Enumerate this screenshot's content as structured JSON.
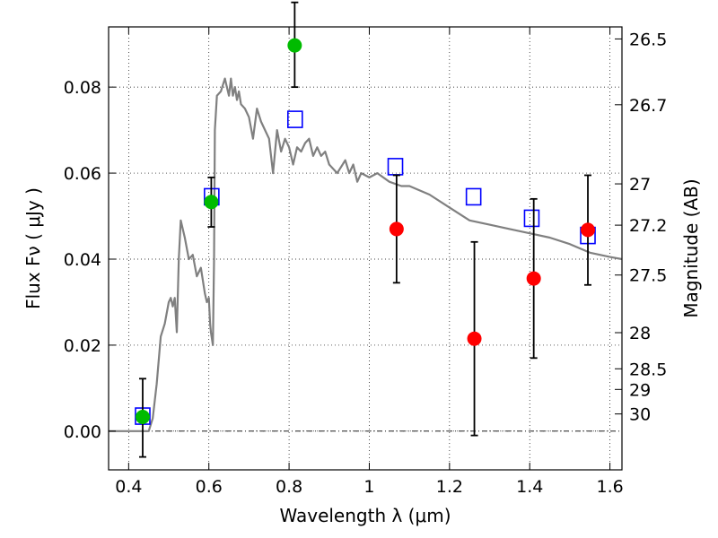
{
  "chart_data": {
    "type": "scatter",
    "xlabel": "Wavelength  λ (μm)",
    "ylabel": "Flux  Fν  ( μJy )",
    "y2label": "Magnitude (AB)",
    "xlim": [
      0.35,
      1.63
    ],
    "ylim": [
      -0.009,
      0.094
    ],
    "grid": true,
    "x_ticks": [
      "0.4",
      "0.6",
      "0.8",
      "1",
      "1.2",
      "1.4",
      "1.6"
    ],
    "x_tick_values": [
      0.4,
      0.6,
      0.8,
      1.0,
      1.2,
      1.4,
      1.6
    ],
    "y_ticks": [
      "0.00",
      "0.02",
      "0.04",
      "0.06",
      "0.08"
    ],
    "y_tick_values": [
      0.0,
      0.02,
      0.04,
      0.06,
      0.08
    ],
    "y2_ticks": [
      "26.5",
      "26.7",
      "27",
      "27.2",
      "27.5",
      "28",
      "28.5",
      "29",
      "30"
    ],
    "y2_tick_flux": [
      0.0912,
      0.0759,
      0.0575,
      0.0479,
      0.0363,
      0.0229,
      0.0145,
      0.0097,
      0.004
    ],
    "colors": {
      "model": "#808080",
      "model_photometry": "#0000ff",
      "green_points": "#00bb00",
      "red_points": "#ff0000",
      "errorbar": "#000000"
    },
    "model_curve": {
      "x": [
        0.35,
        0.45,
        0.46,
        0.47,
        0.48,
        0.49,
        0.5,
        0.505,
        0.51,
        0.515,
        0.52,
        0.525,
        0.53,
        0.54,
        0.55,
        0.56,
        0.57,
        0.58,
        0.59,
        0.595,
        0.6,
        0.603,
        0.605,
        0.61,
        0.613,
        0.615,
        0.62,
        0.63,
        0.64,
        0.645,
        0.65,
        0.655,
        0.66,
        0.665,
        0.67,
        0.675,
        0.68,
        0.69,
        0.7,
        0.71,
        0.72,
        0.73,
        0.74,
        0.75,
        0.76,
        0.77,
        0.78,
        0.79,
        0.8,
        0.81,
        0.82,
        0.83,
        0.84,
        0.85,
        0.86,
        0.87,
        0.88,
        0.89,
        0.9,
        0.92,
        0.94,
        0.95,
        0.96,
        0.97,
        0.98,
        1.0,
        1.02,
        1.05,
        1.08,
        1.1,
        1.15,
        1.2,
        1.25,
        1.3,
        1.35,
        1.4,
        1.45,
        1.5,
        1.55,
        1.6,
        1.63
      ],
      "y": [
        0.0,
        0.0,
        0.003,
        0.011,
        0.022,
        0.025,
        0.03,
        0.031,
        0.029,
        0.031,
        0.023,
        0.04,
        0.049,
        0.045,
        0.04,
        0.041,
        0.036,
        0.038,
        0.032,
        0.03,
        0.031,
        0.025,
        0.023,
        0.02,
        0.04,
        0.07,
        0.078,
        0.079,
        0.082,
        0.08,
        0.078,
        0.082,
        0.078,
        0.08,
        0.077,
        0.079,
        0.076,
        0.075,
        0.073,
        0.068,
        0.075,
        0.072,
        0.07,
        0.068,
        0.06,
        0.07,
        0.065,
        0.068,
        0.066,
        0.062,
        0.066,
        0.065,
        0.067,
        0.068,
        0.064,
        0.066,
        0.064,
        0.065,
        0.062,
        0.06,
        0.063,
        0.06,
        0.062,
        0.058,
        0.06,
        0.059,
        0.06,
        0.058,
        0.057,
        0.057,
        0.055,
        0.052,
        0.049,
        0.048,
        0.047,
        0.046,
        0.045,
        0.0435,
        0.0415,
        0.0405,
        0.04
      ]
    },
    "series": [
      {
        "marker": "open-square",
        "x": [
          0.435,
          0.607,
          0.815,
          1.065,
          1.26,
          1.405,
          1.545
        ],
        "y": [
          0.0035,
          0.0545,
          0.0725,
          0.0615,
          0.0545,
          0.0495,
          0.0455
        ]
      },
      {
        "marker": "filled-circle",
        "color_key": "green_points",
        "x": [
          0.435,
          0.606,
          0.814
        ],
        "y": [
          0.0033,
          0.0533,
          0.0897
        ],
        "yerr_low": [
          0.0093,
          0.0058,
          0.0097
        ],
        "yerr_high": [
          0.0089,
          0.0057,
          0.01
        ]
      },
      {
        "marker": "filled-circle",
        "color_key": "red_points",
        "x": [
          1.068,
          1.262,
          1.41,
          1.545
        ],
        "y": [
          0.047,
          0.0215,
          0.0355,
          0.0468
        ],
        "yerr_low": [
          0.0125,
          0.0225,
          0.0185,
          0.0128
        ],
        "yerr_high": [
          0.0125,
          0.0225,
          0.0185,
          0.0127
        ]
      }
    ]
  }
}
